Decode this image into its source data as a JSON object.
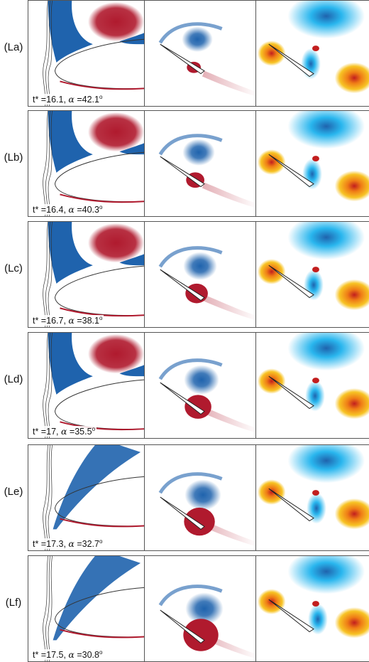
{
  "colors": {
    "negative": "#1f63ad",
    "positive": "#b01a2e",
    "cyan": "#29b6ee",
    "yellow": "#f7c324",
    "orange": "#ef7c16",
    "red": "#c21e1e"
  },
  "rows": [
    {
      "label": "(La)",
      "t_prefix": "t* =",
      "t_value": "16.1",
      "alpha_sym": "α",
      "alpha_prefix": " =",
      "alpha_value": "42.1",
      "deg": "o"
    },
    {
      "label": "(Lb)",
      "t_prefix": "t* =",
      "t_value": "16.4",
      "alpha_sym": "α",
      "alpha_prefix": " =",
      "alpha_value": "40.3",
      "deg": "o"
    },
    {
      "label": "(Lc)",
      "t_prefix": "t* =",
      "t_value": "16.7",
      "alpha_sym": "α",
      "alpha_prefix": " =",
      "alpha_value": "38.1",
      "deg": "o"
    },
    {
      "label": "(Ld)",
      "t_prefix": "t* =",
      "t_value": "17",
      "alpha_sym": "α",
      "alpha_prefix": " =",
      "alpha_value": "35.5",
      "deg": "o"
    },
    {
      "label": "(Le)",
      "t_prefix": "t* =",
      "t_value": "17.3",
      "alpha_sym": "α",
      "alpha_prefix": " =",
      "alpha_value": "32.7",
      "deg": "o"
    },
    {
      "label": "(Lf)",
      "t_prefix": "t* =",
      "t_value": "17.5",
      "alpha_sym": "α",
      "alpha_prefix": " =",
      "alpha_value": "30.8",
      "deg": "o"
    }
  ]
}
